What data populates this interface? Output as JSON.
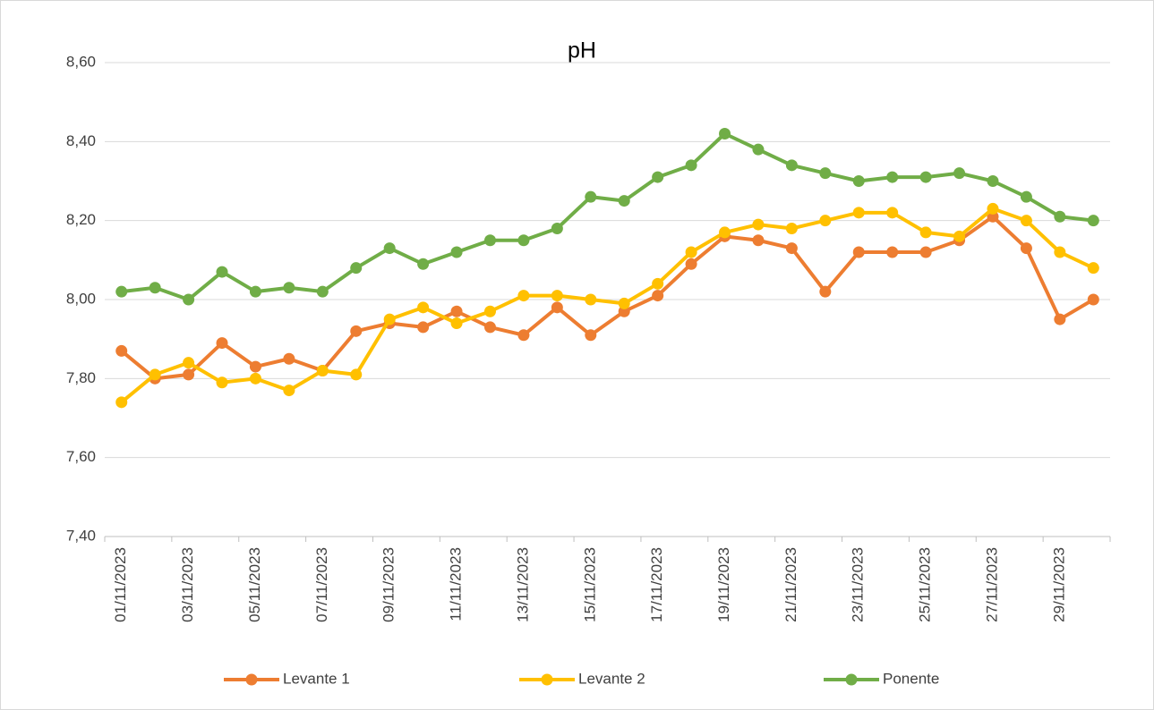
{
  "chart_data": {
    "type": "line",
    "title": "pH",
    "categories": [
      "01/11/2023",
      null,
      "03/11/2023",
      null,
      "05/11/2023",
      null,
      "07/11/2023",
      null,
      "09/11/2023",
      null,
      "11/11/2023",
      null,
      "13/11/2023",
      null,
      "15/11/2023",
      null,
      "17/11/2023",
      null,
      "19/11/2023",
      null,
      "21/11/2023",
      null,
      "23/11/2023",
      null,
      "25/11/2023",
      null,
      "27/11/2023",
      null,
      "29/11/2023",
      null
    ],
    "series": [
      {
        "name": "Levante 1",
        "color": "#ed7d31",
        "values": [
          7.87,
          7.8,
          7.81,
          7.89,
          7.83,
          7.85,
          7.82,
          7.92,
          7.94,
          7.93,
          7.97,
          7.93,
          7.91,
          7.98,
          7.91,
          7.97,
          8.01,
          8.09,
          8.16,
          8.15,
          8.13,
          8.02,
          8.12,
          8.12,
          8.12,
          8.15,
          8.21,
          8.13,
          7.95,
          8.0
        ]
      },
      {
        "name": "Levante 2",
        "color": "#ffc000",
        "values": [
          7.74,
          7.81,
          7.84,
          7.79,
          7.8,
          7.77,
          7.82,
          7.81,
          7.95,
          7.98,
          7.94,
          7.97,
          8.01,
          8.01,
          8.0,
          7.99,
          8.04,
          8.12,
          8.17,
          8.19,
          8.18,
          8.2,
          8.22,
          8.22,
          8.17,
          8.16,
          8.23,
          8.2,
          8.12,
          8.08
        ]
      },
      {
        "name": "Ponente",
        "color": "#70ad47",
        "values": [
          8.02,
          8.03,
          8.0,
          8.07,
          8.02,
          8.03,
          8.02,
          8.08,
          8.13,
          8.09,
          8.12,
          8.15,
          8.15,
          8.18,
          8.26,
          8.25,
          8.31,
          8.34,
          8.42,
          8.38,
          8.34,
          8.32,
          8.3,
          8.31,
          8.31,
          8.32,
          8.3,
          8.26,
          8.21,
          8.2
        ]
      }
    ],
    "ylim": [
      7.4,
      8.6
    ],
    "yticks": [
      {
        "value": 7.4,
        "label": "7,40"
      },
      {
        "value": 7.6,
        "label": "7,60"
      },
      {
        "value": 7.8,
        "label": "7,80"
      },
      {
        "value": 8.0,
        "label": "8,00"
      },
      {
        "value": 8.2,
        "label": "8,20"
      },
      {
        "value": 8.4,
        "label": "8,40"
      },
      {
        "value": 8.6,
        "label": "8,60"
      }
    ],
    "grid": true,
    "legend": "bottom"
  }
}
